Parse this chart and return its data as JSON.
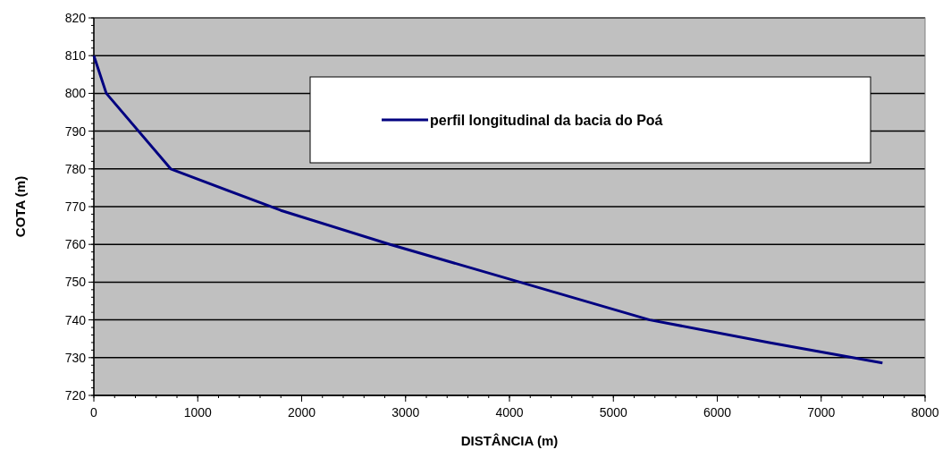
{
  "chart_data": {
    "type": "line",
    "xlabel": "DISTÂNCIA (m)",
    "ylabel": "COTA (m)",
    "x": [
      0,
      120,
      740,
      1800,
      2850,
      4100,
      5350,
      6500,
      7590
    ],
    "series": [
      {
        "name": "perfil longitudinal da bacia do Poá",
        "color": "#000080",
        "values": [
          810,
          800,
          780,
          769,
          760,
          750,
          740,
          734,
          728.6
        ]
      }
    ],
    "xlim": [
      0,
      8000
    ],
    "xticks": [
      0,
      1000,
      2000,
      3000,
      4000,
      5000,
      6000,
      7000,
      8000
    ],
    "ylim": [
      720,
      820
    ],
    "yticks": [
      720,
      730,
      740,
      750,
      760,
      770,
      780,
      790,
      800,
      810,
      820
    ],
    "grid": "y",
    "legend": "top right",
    "marker": "none",
    "line_style": "solid"
  }
}
